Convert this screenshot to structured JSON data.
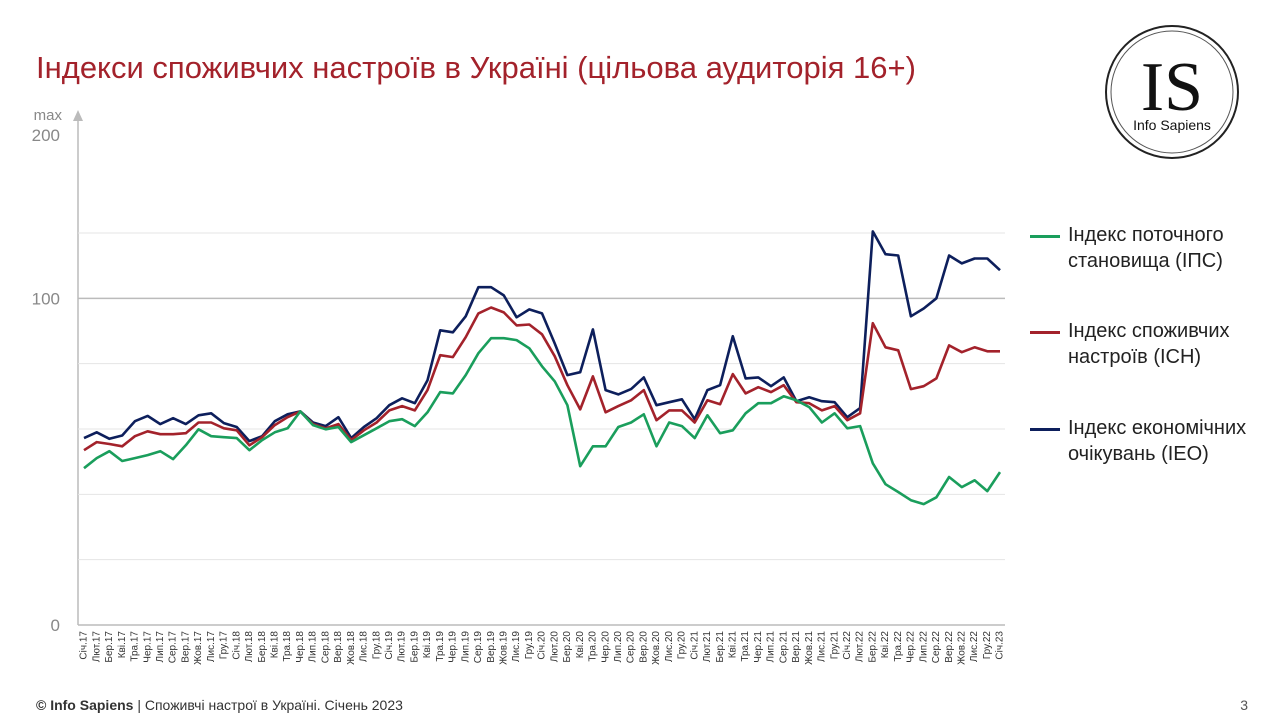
{
  "chart_data": {
    "type": "line",
    "title": "Індекси споживчих настроїв в Україні (цільова аудиторія 16+)",
    "categories": [
      "Січ.17",
      "Лют.17",
      "Бер.17",
      "Кві.17",
      "Тра.17",
      "Чер.17",
      "Лип.17",
      "Сер.17",
      "Вер.17",
      "Жов.17",
      "Лис.17",
      "Гру.17",
      "Січ.18",
      "Лют.18",
      "Бер.18",
      "Кві.18",
      "Тра.18",
      "Чер.18",
      "Лип.18",
      "Сер.18",
      "Вер.18",
      "Жов.18",
      "Лис.18",
      "Гру.18",
      "Січ.19",
      "Лют.19",
      "Бер.19",
      "Кві.19",
      "Тра.19",
      "Чер.19",
      "Лип.19",
      "Сер.19",
      "Вер.19",
      "Жов.19",
      "Лис.19",
      "Гру.19",
      "Січ.20",
      "Лют.20",
      "Бер.20",
      "Кві.20",
      "Тра.20",
      "Чер.20",
      "Лип.20",
      "Сер.20",
      "Вер.20",
      "Жов.20",
      "Лис.20",
      "Гру.20",
      "Січ.21",
      "Лют.21",
      "Бер.21",
      "Кві.21",
      "Тра.21",
      "Чер.21",
      "Лип.21",
      "Сер.21",
      "Вер.21",
      "Жов.21",
      "Лис.21",
      "Гру.21",
      "Січ.22",
      "Лют.22",
      "Бер.22",
      "Кві.22",
      "Тра.22",
      "Чер.22",
      "Лип.22",
      "Сер.22",
      "Вер.22",
      "Жов.22",
      "Лис.22",
      "Гру.22",
      "Січ.23"
    ],
    "series": [
      {
        "name": "Індекс поточного становища (ІПС)",
        "color": "#1a9e5c",
        "values": [
          48,
          51.1,
          53.2,
          50.2,
          51.1,
          52,
          53.2,
          50.8,
          55,
          59.9,
          57.8,
          57.5,
          57.2,
          53.5,
          56.6,
          59,
          60.2,
          65.4,
          61.2,
          59.9,
          60.6,
          56,
          58.1,
          60.2,
          62.4,
          63,
          60.9,
          65.1,
          71.3,
          70.9,
          76.5,
          83.2,
          87.8,
          87.8,
          87.2,
          84.7,
          79.2,
          74.6,
          67.3,
          48.6,
          54.7,
          54.7,
          60.6,
          62,
          64.5,
          54.7,
          62,
          60.9,
          57.2,
          64.2,
          58.7,
          59.6,
          64.8,
          67.9,
          67.9,
          70,
          68.8,
          66.7,
          62,
          64.8,
          60.2,
          60.9,
          49.5,
          43.1,
          40.7,
          38.2,
          37,
          39.1,
          45.3,
          42.2,
          44.3,
          41,
          46.8
        ]
      },
      {
        "name": "Індекс споживчих настроїв (ІСН)",
        "color": "#a3222b",
        "values": [
          53.5,
          56,
          55.4,
          54.7,
          57.8,
          59.3,
          58.4,
          58.4,
          58.7,
          62,
          62,
          60.2,
          59.6,
          55,
          57.5,
          61.2,
          63.6,
          65.4,
          61.5,
          60.2,
          61.5,
          56.6,
          59.6,
          62,
          65.7,
          67,
          65.7,
          71.9,
          82.6,
          82,
          88.1,
          95.4,
          97.2,
          95.7,
          91.7,
          92,
          89,
          82.3,
          73.4,
          66,
          76.1,
          65.1,
          67,
          68.8,
          71.9,
          62.7,
          65.7,
          65.7,
          62,
          68.8,
          67.6,
          76.8,
          70.9,
          72.8,
          71.3,
          73.4,
          68.2,
          67.9,
          65.7,
          67,
          62.7,
          64.8,
          92.4,
          85,
          84.1,
          72.2,
          73.1,
          75.5,
          85.6,
          83.5,
          85,
          83.8,
          83.8
        ]
      },
      {
        "name": "Індекс економічних очікувань (ІЕО)",
        "color": "#0d1f5c",
        "values": [
          57.2,
          59,
          57,
          58,
          62.4,
          64,
          61.5,
          63.3,
          61.5,
          64.2,
          64.8,
          61.8,
          60.6,
          56.3,
          57.8,
          62.4,
          64.5,
          65.4,
          62,
          60.9,
          63.6,
          57.2,
          60.6,
          63.3,
          67.3,
          69.4,
          67.9,
          74.9,
          90.2,
          89.6,
          94.5,
          103.4,
          103.4,
          100.9,
          94.2,
          96.6,
          95.4,
          86.2,
          76.5,
          77.4,
          90.5,
          71.9,
          70.6,
          72.2,
          75.8,
          67.3,
          68.2,
          69.1,
          63,
          71.9,
          73.4,
          88.4,
          75.5,
          75.8,
          73.1,
          75.8,
          68.5,
          69.7,
          68.5,
          68.2,
          63.6,
          66.4,
          120.5,
          113.5,
          113.1,
          94.5,
          96.9,
          100,
          113.1,
          110.7,
          112.2,
          112.2,
          108.6
        ]
      }
    ],
    "ylim": [
      0,
      150
    ],
    "yticks": [
      0,
      100
    ],
    "gridlines": [
      20,
      40,
      60,
      80,
      100,
      120
    ],
    "y_max_label": "max",
    "y_max": 200,
    "grid": true
  },
  "logo": {
    "mark": "IS",
    "name": "Info Sapiens"
  },
  "footer": {
    "brand": "© Info Sapiens",
    "text": " | Споживчі настрої в Україні. Січень 2023",
    "page": "3"
  }
}
